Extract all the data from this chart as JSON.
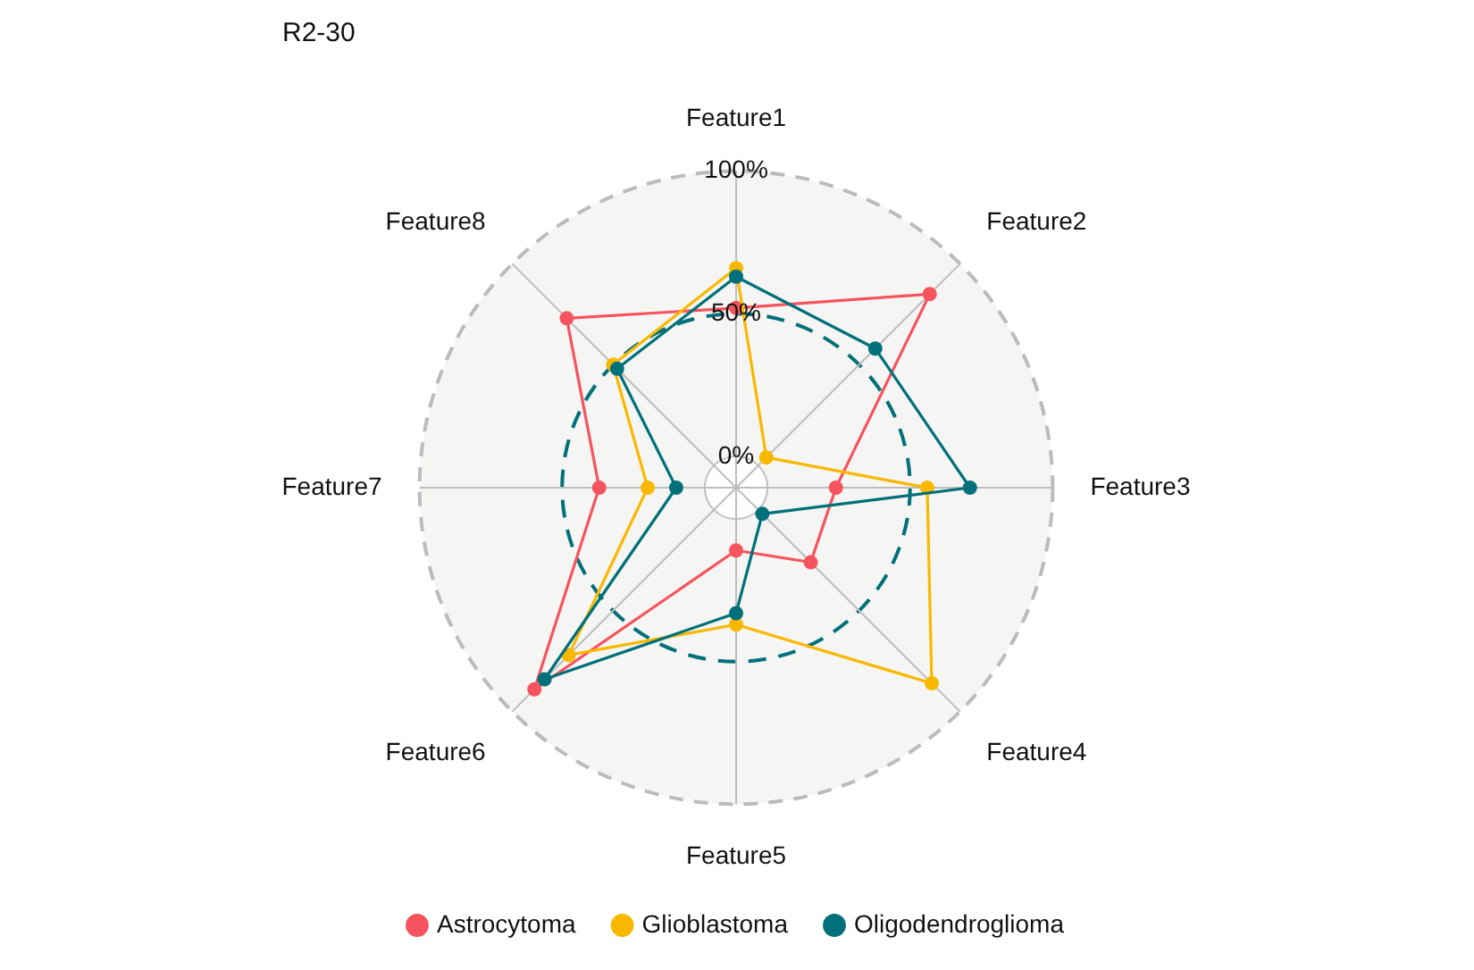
{
  "chart_data": {
    "type": "radar",
    "title": "R2-30",
    "categories": [
      "Feature1",
      "Feature2",
      "Feature3",
      "Feature4",
      "Feature5",
      "Feature6",
      "Feature7",
      "Feature8"
    ],
    "series": [
      {
        "name": "Astrocytoma",
        "color": "#f5545f",
        "values": [
          52,
          85,
          24,
          26,
          11,
          89,
          37,
          73
        ]
      },
      {
        "name": "Glioblastoma",
        "color": "#f9b800",
        "values": [
          66,
          4,
          56,
          86,
          37,
          72,
          20,
          50
        ]
      },
      {
        "name": "Oligodendroglioma",
        "color": "#00707a",
        "values": [
          63,
          58,
          71,
          2,
          33,
          84,
          10,
          48
        ]
      }
    ],
    "ylim": [
      -11,
      100
    ],
    "yticks": [
      {
        "value": 0,
        "label": "0%"
      },
      {
        "value": 50,
        "label": "50%"
      },
      {
        "value": 100,
        "label": "100%"
      }
    ],
    "grid": true,
    "legend": "bottom",
    "marker": "circle",
    "line_style": "solid"
  }
}
